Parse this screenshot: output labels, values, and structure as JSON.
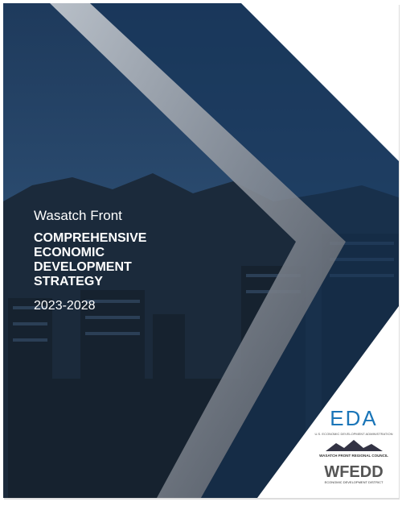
{
  "cover": {
    "subtitle": "Wasatch Front",
    "title_lines": [
      "COMPREHENSIVE",
      "ECONOMIC",
      "DEVELOPMENT",
      "STRATEGY"
    ],
    "years": "2023-2028"
  },
  "logos": [
    {
      "name": "EDA",
      "caption": "U.S. ECONOMIC DEVELOPMENT ADMINISTRATION"
    },
    {
      "name": "WASATCH FRONT REGIONAL COUNCIL"
    },
    {
      "name": "WFEDD",
      "caption": "ECONOMIC DEVELOPMENT DISTRICT"
    }
  ]
}
